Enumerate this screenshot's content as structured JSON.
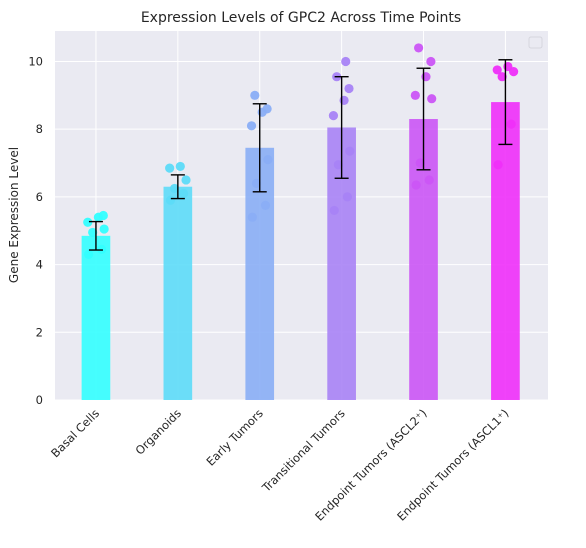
{
  "chart_data": {
    "type": "bar",
    "title": "Expression Levels of GPC2 Across Time Points",
    "xlabel": "",
    "ylabel": "Gene Expression Level",
    "ylim": [
      0,
      10.9
    ],
    "yticks": [
      0,
      2,
      4,
      6,
      8,
      10
    ],
    "grid": true,
    "legend": "top-right, empty",
    "categories": [
      "Basal Cells",
      "Organoids",
      "Early Tumors",
      "Transitional Tumors",
      "Endpoint Tumors (ASCL2⁺)",
      "Endpoint Tumors (ASCL1⁺)"
    ],
    "values": [
      4.85,
      6.3,
      7.45,
      8.05,
      8.3,
      8.8
    ],
    "errors": [
      0.42,
      0.35,
      1.3,
      1.5,
      1.5,
      1.25
    ],
    "points": [
      [
        4.3,
        4.45,
        4.95,
        5.05,
        5.25,
        5.4,
        5.45
      ],
      [
        5.9,
        6.1,
        6.25,
        6.5,
        6.85,
        6.9
      ],
      [
        5.4,
        5.75,
        6.4,
        7.1,
        8.1,
        8.5,
        8.6,
        9.0
      ],
      [
        5.6,
        6.0,
        6.95,
        7.35,
        8.4,
        8.85,
        9.2,
        9.55,
        10.0
      ],
      [
        6.35,
        6.5,
        7.0,
        8.9,
        9.0,
        9.55,
        10.0,
        10.4
      ],
      [
        6.95,
        8.15,
        9.55,
        9.7,
        9.75,
        9.85
      ]
    ],
    "colors": [
      "#33ffff",
      "#5ddbf8",
      "#8aaef5",
      "#a883f5",
      "#cb55f5",
      "#ef2ff9"
    ]
  }
}
